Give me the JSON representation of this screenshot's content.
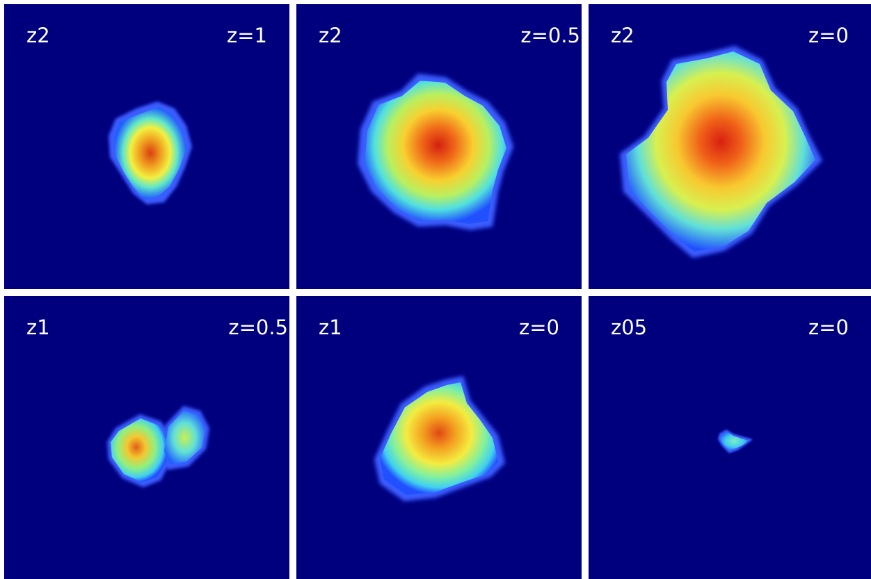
{
  "colors": {
    "background": "#00007f",
    "separator": "#ffffff",
    "text": "#ffffff"
  },
  "panels": [
    {
      "left_label": "z2",
      "right_label": "z=1",
      "blob": "small"
    },
    {
      "left_label": "z2",
      "right_label": "z=0.5",
      "blob": "medium"
    },
    {
      "left_label": "z2",
      "right_label": "z=0",
      "blob": "large"
    },
    {
      "left_label": "z1",
      "right_label": "z=0.5",
      "blob": "double"
    },
    {
      "left_label": "z1",
      "right_label": "z=0",
      "blob": "medium-triangle"
    },
    {
      "left_label": "z05",
      "right_label": "z=0",
      "blob": "tiny"
    }
  ]
}
